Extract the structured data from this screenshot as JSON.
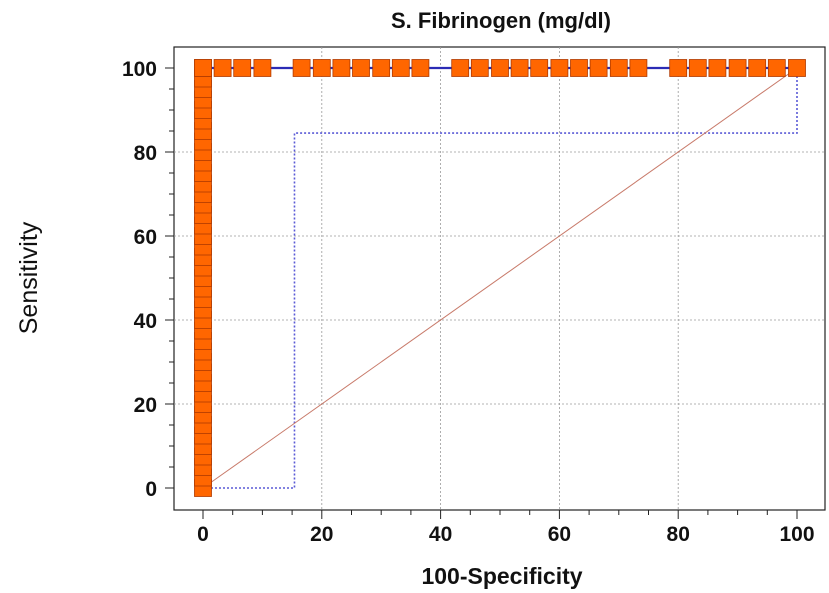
{
  "chart_data": {
    "type": "line",
    "title": "S. Fibrinogen (mg/dl)",
    "xlabel": "100-Specificity",
    "ylabel": "Sensitivity",
    "xlim": [
      0,
      100
    ],
    "ylim": [
      0,
      100
    ],
    "x_ticks": [
      "0",
      "20",
      "40",
      "60",
      "80",
      "100"
    ],
    "y_ticks": [
      "0",
      "20",
      "40",
      "60",
      "80",
      "100"
    ],
    "grid": true,
    "series": [
      {
        "role": "roc-curve",
        "color": "#2b2bb5",
        "marker_color": "#ff6600",
        "x": [
          0,
          0,
          100
        ],
        "y": [
          0,
          100,
          100
        ],
        "marker_x": [
          0,
          3.3,
          6.6,
          10,
          16.6,
          20,
          23.3,
          26.6,
          30,
          33.3,
          36.6,
          43.3,
          46.6,
          50,
          53.3,
          56.6,
          60,
          63.3,
          66.6,
          70,
          73.3,
          80,
          83.3,
          86.6,
          90,
          93.3,
          96.6,
          100
        ],
        "marker_y_left": [
          0,
          2.5,
          5,
          7.5,
          10,
          12.5,
          15,
          17.5,
          20,
          22.5,
          25,
          27.5,
          30,
          32.5,
          35,
          37.5,
          40,
          42.5,
          45,
          47.5,
          50,
          52.5,
          55,
          57.5,
          60,
          62.5,
          65,
          67.5,
          70,
          72.5,
          75,
          77.5,
          80,
          82.5,
          85,
          87.5,
          90,
          92.5,
          95,
          97.5,
          100
        ]
      },
      {
        "role": "confidence-bound",
        "style": "dotted",
        "color": "#5a5ad6",
        "x": [
          0,
          15.4,
          15.4,
          100,
          100
        ],
        "y": [
          0,
          0,
          84.5,
          84.5,
          100
        ]
      },
      {
        "role": "diagonal-reference",
        "color": "#c87a6a",
        "x": [
          0,
          100
        ],
        "y": [
          0,
          100
        ]
      }
    ]
  }
}
